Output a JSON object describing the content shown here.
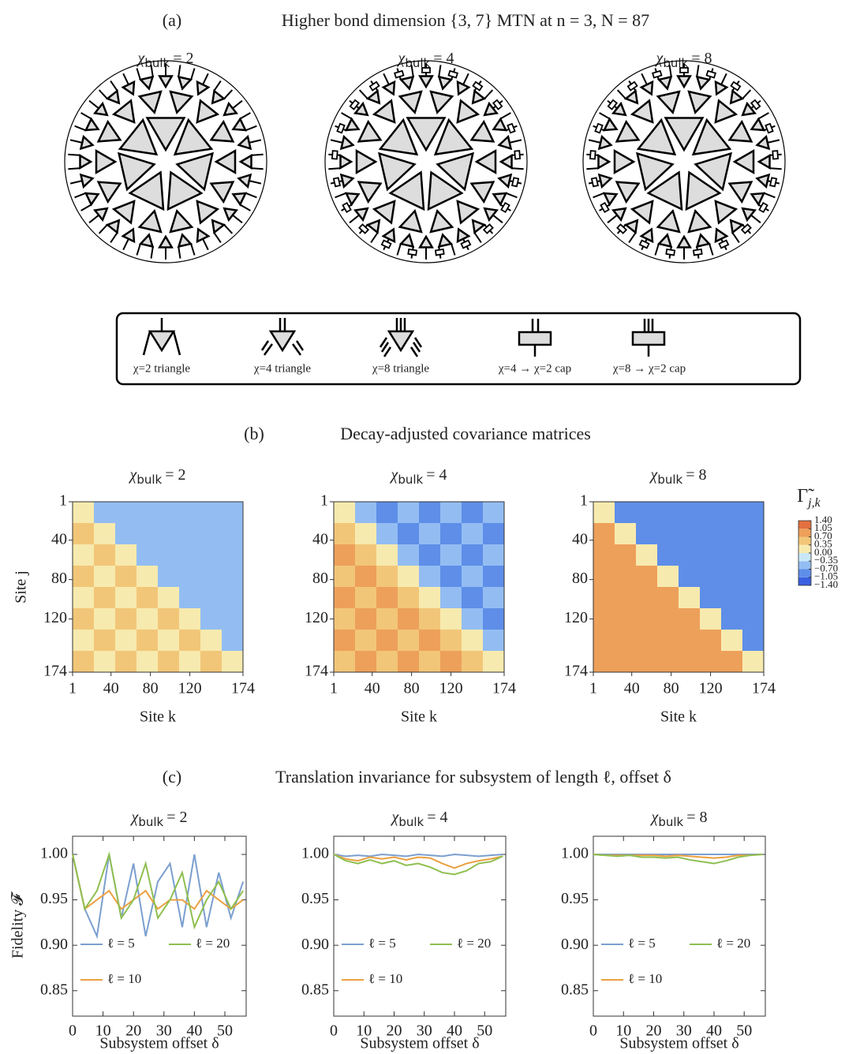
{
  "panel_a": {
    "label": "(a)",
    "title": "Higher bond dimension {3, 7} MTN at n = 3, N = 87",
    "subtitles": [
      [
        "χ",
        "bulk",
        "= 2"
      ],
      [
        "χ",
        "bulk",
        "= 4"
      ],
      [
        "χ",
        "bulk",
        "= 8"
      ]
    ],
    "legend": [
      "χ=2 triangle",
      "χ=4 triangle",
      "χ=8 triangle",
      "χ=4 → χ=2 cap",
      "χ=8 → χ=2 cap"
    ]
  },
  "panel_b": {
    "label": "(b)",
    "title": "Decay-adjusted covariance matrices"
  },
  "panel_c": {
    "label": "(c)",
    "title": "Translation invariance for subsystem of length ℓ, offset δ"
  },
  "colorbar": {
    "title": [
      "Γ̃",
      "j,k"
    ],
    "ticks": [
      {
        "value": 1.4,
        "label": "1.40"
      },
      1.05,
      {
        "value": 0.7,
        "label": "0.70"
      },
      0.35,
      {
        "value": 0,
        "label": "0.00"
      },
      {
        "value": -0.35,
        "label": "−0.35"
      },
      {
        "value": -0.7,
        "label": "−0.70"
      },
      {
        "value": -1.05,
        "label": "−1.05"
      },
      {
        "value": -1.4,
        "label": "−1.40"
      }
    ],
    "colors": [
      "#3b5fe0",
      "#5e8ee8",
      "#93bdf2",
      "#c8e8f8",
      "#f7eaae",
      "#f2c678",
      "#eda05a",
      "#e47040"
    ]
  },
  "chart_data": [
    {
      "type": "heatmap",
      "title": [
        "χ",
        "bulk",
        "= 2"
      ],
      "xlabel": "Site k",
      "ylabel": "Site j",
      "xlim": [
        1,
        174
      ],
      "ylim": [
        174,
        1
      ],
      "xticks": [
        1,
        40,
        80,
        120,
        174
      ],
      "yticks": [
        1,
        40,
        80,
        120,
        174
      ],
      "values": [
        [
          0,
          -0.4,
          -0.5,
          -0.4,
          -0.5,
          -0.4,
          -0.5,
          -0.4
        ],
        [
          0.4,
          0,
          -0.4,
          -0.5,
          -0.4,
          -0.5,
          -0.4,
          -0.5
        ],
        [
          0.3,
          0.4,
          0,
          -0.4,
          -0.5,
          -0.4,
          -0.5,
          -0.4
        ],
        [
          0.4,
          0.3,
          0.4,
          0,
          -0.4,
          -0.5,
          -0.4,
          -0.5
        ],
        [
          0.3,
          0.4,
          0.3,
          0.4,
          0,
          -0.4,
          -0.5,
          -0.4
        ],
        [
          0.4,
          0.3,
          0.4,
          0.3,
          0.4,
          0,
          -0.4,
          -0.5
        ],
        [
          0.3,
          0.4,
          0.3,
          0.4,
          0.3,
          0.4,
          0,
          -0.4
        ],
        [
          0.4,
          0.3,
          0.4,
          0.3,
          0.4,
          0.3,
          0.4,
          0
        ]
      ]
    },
    {
      "type": "heatmap",
      "title": [
        "χ",
        "bulk",
        "= 4"
      ],
      "xlabel": "Site k",
      "xlim": [
        1,
        174
      ],
      "ylim": [
        174,
        1
      ],
      "xticks": [
        1,
        40,
        80,
        120,
        174
      ],
      "yticks": [
        1,
        40,
        80,
        120,
        174
      ],
      "values": [
        [
          0,
          -0.65,
          -0.75,
          -0.65,
          -0.75,
          -0.65,
          -0.75,
          -0.65
        ],
        [
          0.6,
          0,
          -0.65,
          -0.75,
          -0.65,
          -0.75,
          -0.65,
          -0.75
        ],
        [
          0.75,
          0.6,
          0,
          -0.65,
          -0.75,
          -0.65,
          -0.75,
          -0.65
        ],
        [
          0.6,
          0.75,
          0.6,
          0,
          -0.65,
          -0.75,
          -0.65,
          -0.75
        ],
        [
          0.75,
          0.6,
          0.75,
          0.6,
          0,
          -0.65,
          -0.75,
          -0.65
        ],
        [
          0.6,
          0.75,
          0.6,
          0.75,
          0.6,
          0,
          -0.65,
          -0.75
        ],
        [
          0.75,
          0.6,
          0.75,
          0.6,
          0.75,
          0.6,
          0,
          -0.65
        ],
        [
          0.6,
          0.75,
          0.6,
          0.75,
          0.6,
          0.75,
          0.6,
          0
        ]
      ]
    },
    {
      "type": "heatmap",
      "title": [
        "χ",
        "bulk",
        "= 8"
      ],
      "xlabel": "Site k",
      "xlim": [
        1,
        174
      ],
      "ylim": [
        174,
        1
      ],
      "xticks": [
        1,
        40,
        80,
        120,
        174
      ],
      "yticks": [
        1,
        40,
        80,
        120,
        174
      ],
      "values": [
        [
          0,
          -0.8,
          -0.85,
          -0.8,
          -0.85,
          -0.8,
          -0.85,
          -0.8
        ],
        [
          0.75,
          0,
          -0.8,
          -0.85,
          -0.8,
          -0.85,
          -0.8,
          -0.85
        ],
        [
          0.8,
          0.75,
          0,
          -0.8,
          -0.85,
          -0.8,
          -0.85,
          -0.8
        ],
        [
          0.75,
          0.8,
          0.75,
          0,
          -0.8,
          -0.85,
          -0.8,
          -0.85
        ],
        [
          0.8,
          0.75,
          0.8,
          0.75,
          0,
          -0.8,
          -0.85,
          -0.8
        ],
        [
          0.75,
          0.8,
          0.75,
          0.8,
          0.75,
          0,
          -0.8,
          -0.85
        ],
        [
          0.8,
          0.75,
          0.8,
          0.75,
          0.8,
          0.75,
          0,
          -0.8
        ],
        [
          0.75,
          0.8,
          0.75,
          0.8,
          0.75,
          0.8,
          0.75,
          0
        ]
      ]
    },
    {
      "type": "line",
      "title": [
        "χ",
        "bulk",
        "= 2"
      ],
      "xlabel": "Subsystem offset δ",
      "ylabel": "Fidelity 𝓕",
      "xlim": [
        0,
        57
      ],
      "ylim": [
        0.822,
        1.02
      ],
      "xticks": [
        0,
        10,
        20,
        30,
        40,
        50
      ],
      "yticks": [
        {
          "value": 1,
          "label": "1.00"
        },
        0.95,
        {
          "value": 0.9,
          "label": "0.90"
        },
        0.85
      ],
      "x": [
        0,
        4,
        8,
        12,
        16,
        20,
        24,
        28,
        32,
        36,
        40,
        44,
        48,
        52,
        56
      ],
      "series": [
        {
          "name": "ℓ = 5",
          "color": "#7b9fcf",
          "values": [
            1.0,
            0.94,
            0.91,
            1.0,
            0.93,
            0.99,
            0.91,
            0.97,
            0.99,
            0.92,
            1.0,
            0.92,
            0.98,
            0.93,
            0.97
          ]
        },
        {
          "name": "ℓ = 10",
          "color": "#eba040",
          "values": [
            1.0,
            0.94,
            0.95,
            0.96,
            0.94,
            0.95,
            0.96,
            0.94,
            0.95,
            0.95,
            0.94,
            0.96,
            0.95,
            0.94,
            0.95
          ]
        },
        {
          "name": "ℓ = 20",
          "color": "#8fbf50",
          "values": [
            1.0,
            0.94,
            0.96,
            1.0,
            0.93,
            0.95,
            0.99,
            0.93,
            0.95,
            0.98,
            0.92,
            0.95,
            0.97,
            0.94,
            0.96
          ]
        }
      ]
    },
    {
      "type": "line",
      "title": [
        "χ",
        "bulk",
        "= 4"
      ],
      "xlabel": "Subsystem offset δ",
      "xlim": [
        0,
        57
      ],
      "ylim": [
        0.822,
        1.02
      ],
      "xticks": [
        0,
        10,
        20,
        30,
        40,
        50
      ],
      "yticks": [
        {
          "value": 1,
          "label": "1.00"
        },
        0.95,
        {
          "value": 0.9,
          "label": "0.90"
        },
        0.85
      ],
      "x": [
        0,
        4,
        8,
        12,
        16,
        20,
        24,
        28,
        32,
        36,
        40,
        44,
        48,
        52,
        56
      ],
      "series": [
        {
          "name": "ℓ = 5",
          "color": "#7b9fcf",
          "values": [
            1.0,
            0.998,
            0.999,
            0.998,
            1.0,
            0.999,
            0.998,
            1.0,
            0.999,
            0.998,
            1.0,
            0.999,
            0.998,
            0.999,
            1.0
          ]
        },
        {
          "name": "ℓ = 10",
          "color": "#eba040",
          "values": [
            1.0,
            0.995,
            0.993,
            0.997,
            0.995,
            0.997,
            0.994,
            0.997,
            0.996,
            0.99,
            0.985,
            0.99,
            0.993,
            0.995,
            0.998
          ]
        },
        {
          "name": "ℓ = 20",
          "color": "#8fbf50",
          "values": [
            1.0,
            0.993,
            0.99,
            0.994,
            0.99,
            0.993,
            0.988,
            0.99,
            0.986,
            0.98,
            0.978,
            0.982,
            0.99,
            0.992,
            0.998
          ]
        }
      ]
    },
    {
      "type": "line",
      "title": [
        "χ",
        "bulk",
        "= 8"
      ],
      "xlabel": "Subsystem offset δ",
      "xlim": [
        0,
        57
      ],
      "ylim": [
        0.822,
        1.02
      ],
      "xticks": [
        0,
        10,
        20,
        30,
        40,
        50
      ],
      "yticks": [
        {
          "value": 1,
          "label": "1.00"
        },
        0.95,
        {
          "value": 0.9,
          "label": "0.90"
        },
        0.85
      ],
      "x": [
        0,
        4,
        8,
        12,
        16,
        20,
        24,
        28,
        32,
        36,
        40,
        44,
        48,
        52,
        56
      ],
      "series": [
        {
          "name": "ℓ = 5",
          "color": "#7b9fcf",
          "values": [
            1.0,
            1.0,
            1.0,
            1.0,
            1.0,
            1.0,
            1.0,
            1.0,
            1.0,
            1.0,
            1.0,
            1.0,
            1.0,
            1.0,
            1.0
          ]
        },
        {
          "name": "ℓ = 10",
          "color": "#eba040",
          "values": [
            1.0,
            0.999,
            0.999,
            0.999,
            0.999,
            0.999,
            0.998,
            0.999,
            0.998,
            0.997,
            0.996,
            0.997,
            0.999,
            0.999,
            1.0
          ]
        },
        {
          "name": "ℓ = 20",
          "color": "#8fbf50",
          "values": [
            1.0,
            0.999,
            0.998,
            0.999,
            0.997,
            0.997,
            0.996,
            0.997,
            0.994,
            0.992,
            0.99,
            0.993,
            0.997,
            0.999,
            1.0
          ]
        }
      ]
    }
  ]
}
